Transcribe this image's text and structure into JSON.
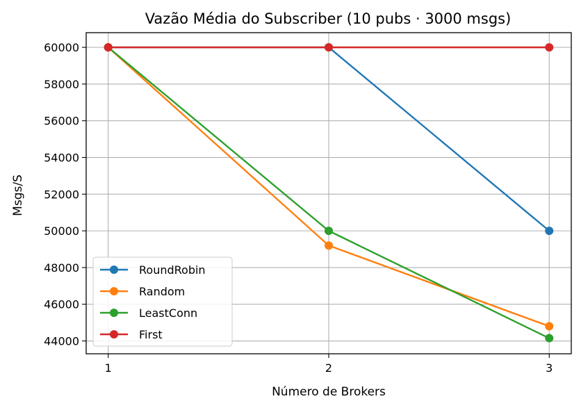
{
  "chart_data": {
    "type": "line",
    "title": "Vazão Média do Subscriber (10 pubs · 3000 msgs)",
    "xlabel": "Número de Brokers",
    "ylabel": "Msgs/S",
    "x": [
      1,
      2,
      3
    ],
    "xticks": [
      "1",
      "2",
      "3"
    ],
    "xlim": [
      0.9,
      3.1
    ],
    "yticks": [
      "44000",
      "46000",
      "48000",
      "50000",
      "52000",
      "54000",
      "56000",
      "58000",
      "60000"
    ],
    "ylim": [
      43300,
      60800
    ],
    "grid": true,
    "legend_position": "lower-left",
    "series": [
      {
        "name": "RoundRobin",
        "color": "#1f77b4",
        "values": [
          60000,
          60000,
          50000
        ]
      },
      {
        "name": "Random",
        "color": "#ff7f0e",
        "values": [
          60000,
          49200,
          44800
        ]
      },
      {
        "name": "LeastConn",
        "color": "#2ca02c",
        "values": [
          60000,
          50000,
          44150
        ]
      },
      {
        "name": "First",
        "color": "#d62728",
        "values": [
          60000,
          60000,
          60000
        ]
      }
    ]
  }
}
